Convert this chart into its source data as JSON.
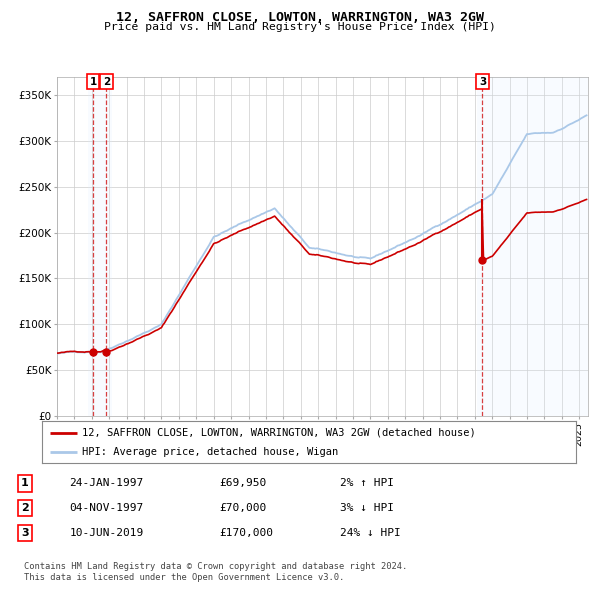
{
  "title1": "12, SAFFRON CLOSE, LOWTON, WARRINGTON, WA3 2GW",
  "title2": "Price paid vs. HM Land Registry's House Price Index (HPI)",
  "legend_red": "12, SAFFRON CLOSE, LOWTON, WARRINGTON, WA3 2GW (detached house)",
  "legend_blue": "HPI: Average price, detached house, Wigan",
  "transactions": [
    {
      "num": 1,
      "date": "24-JAN-1997",
      "price": 69950,
      "pct": "2%",
      "dir": "↑",
      "x_year": 1997.07
    },
    {
      "num": 2,
      "date": "04-NOV-1997",
      "price": 70000,
      "pct": "3%",
      "dir": "↓",
      "x_year": 1997.84
    },
    {
      "num": 3,
      "date": "10-JUN-2019",
      "price": 170000,
      "pct": "24%",
      "dir": "↓",
      "x_year": 2019.44
    }
  ],
  "footnote1": "Contains HM Land Registry data © Crown copyright and database right 2024.",
  "footnote2": "This data is licensed under the Open Government Licence v3.0.",
  "ylim": [
    0,
    370000
  ],
  "xlim_left": 1995.0,
  "xlim_right": 2025.5,
  "background_color": "#ffffff",
  "grid_color": "#cccccc",
  "hpi_color": "#aac8e8",
  "red_color": "#cc0000",
  "shade_color": "#ddeeff",
  "vline_color": "#cc0000"
}
